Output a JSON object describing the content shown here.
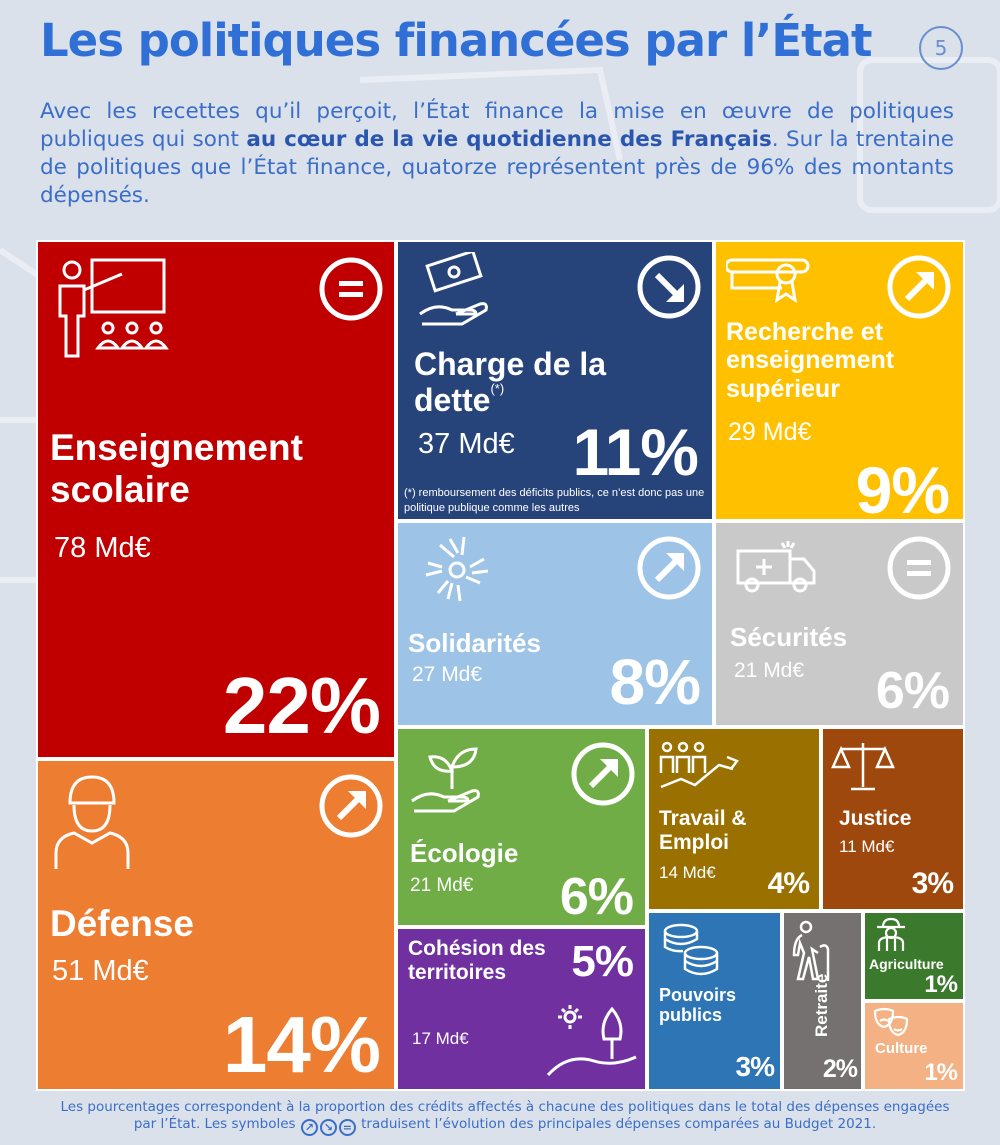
{
  "page": {
    "title": "Les politiques financées par l’État",
    "page_number": "5",
    "intro_part1": "Avec les recettes qu’il perçoit, l’État finance la mise en œuvre de politiques publiques qui sont ",
    "intro_bold": "au cœur de la vie quotidienne des Français",
    "intro_part2": ". Sur la trentaine de politiques que l’État finance, quatorze représentent près de 96% des montants dépensés.",
    "footer_part1": "Les pourcentages correspondent à la proportion des crédits affectés à chacune des politiques dans le total des dépenses engagées par l’État. Les symboles ",
    "footer_part2": " traduisent l’évolution des principales dépenses comparées au Budget 2021."
  },
  "colors": {
    "title": "#2f6fd6",
    "enseignement": "#c00000",
    "defense": "#ed7d31",
    "dette": "#26437a",
    "recherche": "#ffc000",
    "solidarites": "#9dc3e6",
    "securites": "#c9c9c9",
    "ecologie": "#70ad47",
    "cohesion": "#7030a0",
    "travail": "#9a7000",
    "justice": "#9e480e",
    "pouvoirs": "#2e75b6",
    "retraite": "#767171",
    "agriculture": "#3b7a2c",
    "culture": "#f4b183"
  },
  "chart_data": {
    "type": "treemap",
    "title": "Les politiques financées par l’État",
    "unit": "Md€",
    "items": [
      {
        "key": "enseignement",
        "name": "Enseignement scolaire",
        "amount": "78 Md€",
        "value": 78,
        "percent": "22%",
        "trend": "equal",
        "icon": "teacher-icon"
      },
      {
        "key": "defense",
        "name": "Défense",
        "amount": "51 Md€",
        "value": 51,
        "percent": "14%",
        "trend": "up",
        "icon": "soldier-icon"
      },
      {
        "key": "dette",
        "name": "Charge de la dette",
        "name_line1": "Charge de la",
        "name_line2": "dette",
        "footnote_mark": "(*)",
        "amount": "37 Md€",
        "value": 37,
        "percent": "11%",
        "trend": "down",
        "icon": "money-hand-icon",
        "note": "(*) remboursement des déficits publics, ce n’est donc pas une politique publique comme les autres"
      },
      {
        "key": "recherche",
        "name": "Recherche et enseignement supérieur",
        "amount": "29 Md€",
        "value": 29,
        "percent": "9%",
        "trend": "up",
        "icon": "diploma-icon"
      },
      {
        "key": "solidarites",
        "name": "Solidarités",
        "amount": "27 Md€",
        "value": 27,
        "percent": "8%",
        "trend": "up",
        "icon": "hands-circle-icon"
      },
      {
        "key": "securites",
        "name": "Sécurités",
        "amount": "21 Md€",
        "value": 21,
        "percent": "6%",
        "trend": "equal",
        "icon": "ambulance-icon"
      },
      {
        "key": "ecologie",
        "name": "Écologie",
        "amount": "21 Md€",
        "value": 21,
        "percent": "6%",
        "trend": "up",
        "icon": "plant-hand-icon"
      },
      {
        "key": "cohesion",
        "name": "Cohésion des territoires",
        "amount": "17 Md€",
        "value": 17,
        "percent": "5%",
        "trend": "none",
        "icon": "landscape-icon"
      },
      {
        "key": "travail",
        "name": "Travail & Emploi",
        "amount": "14 Md€",
        "value": 14,
        "percent": "4%",
        "trend": "none",
        "icon": "workers-chart-icon"
      },
      {
        "key": "justice",
        "name": "Justice",
        "amount": "11 Md€",
        "value": 11,
        "percent": "3%",
        "trend": "none",
        "icon": "scales-icon"
      },
      {
        "key": "pouvoirs",
        "name": "Pouvoirs publics",
        "amount": "",
        "value": null,
        "percent": "3%",
        "trend": "none",
        "icon": "coins-icon"
      },
      {
        "key": "retraite",
        "name": "Retraite",
        "amount": "",
        "value": null,
        "percent": "2%",
        "trend": "none",
        "icon": "elderly-icon"
      },
      {
        "key": "agriculture",
        "name": "Agriculture",
        "amount": "",
        "value": null,
        "percent": "1%",
        "trend": "none",
        "icon": "farmer-icon"
      },
      {
        "key": "culture",
        "name": "Culture",
        "amount": "",
        "value": null,
        "percent": "1%",
        "trend": "none",
        "icon": "masks-icon"
      }
    ]
  }
}
